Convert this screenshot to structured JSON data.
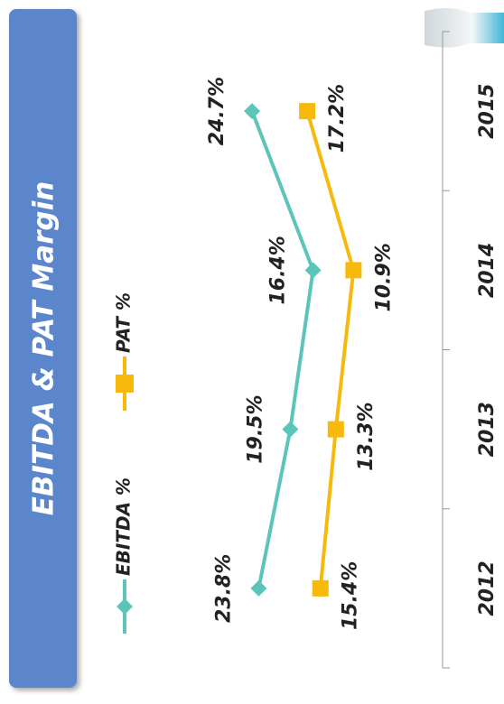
{
  "chart_data": {
    "type": "line",
    "title": "EBITDA & PAT Margin",
    "categories": [
      "2012",
      "2013",
      "2014",
      "2015"
    ],
    "series": [
      {
        "name": "EBITDA %",
        "color": "#5cc5b9",
        "values": [
          23.8,
          19.5,
          16.4,
          24.7
        ],
        "value_labels": [
          "23.8%",
          "19.5%",
          "16.4%",
          "24.7%"
        ]
      },
      {
        "name": "PAT %",
        "color": "#f7b90c",
        "values": [
          15.4,
          13.3,
          10.9,
          17.2
        ],
        "value_labels": [
          "15.4%",
          "13.3%",
          "10.9%",
          "17.2%"
        ]
      }
    ],
    "ylim": [
      0,
      30
    ]
  }
}
